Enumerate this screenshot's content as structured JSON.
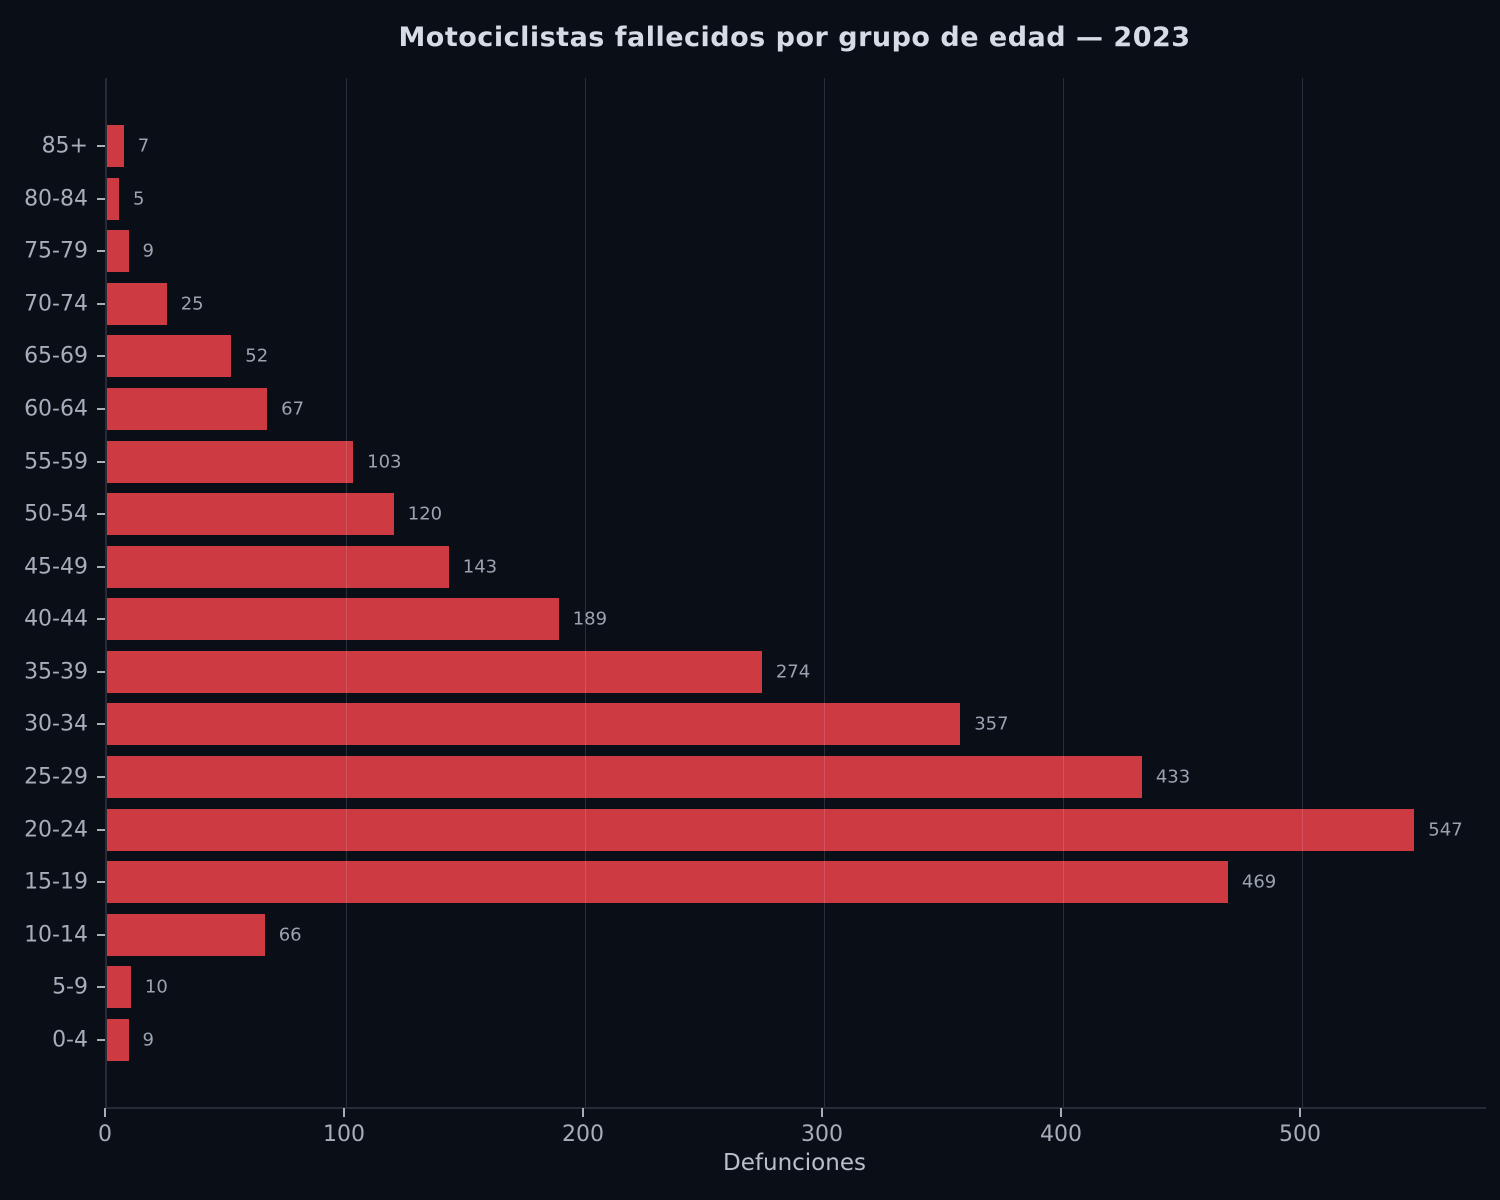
{
  "title": "Motociclistas fallecidos por grupo de edad — 2023",
  "xlabel": "Defunciones",
  "colors": {
    "background": "#0a0e16",
    "bar": "#cd3a41",
    "title_text": "#d6dce5",
    "tick_text": "#a6aebb",
    "value_text": "#9aa3b1",
    "gridline": "rgba(210,220,235,0.16)",
    "spine": "#262b35"
  },
  "chart_data": {
    "type": "bar",
    "orientation": "horizontal",
    "title": "Motociclistas fallecidos por grupo de edad — 2023",
    "xlabel": "Defunciones",
    "ylabel": "",
    "categories": [
      "85+",
      "80-84",
      "75-79",
      "70-74",
      "65-69",
      "60-64",
      "55-59",
      "50-54",
      "45-49",
      "40-44",
      "35-39",
      "30-34",
      "25-29",
      "20-24",
      "15-19",
      "10-14",
      "5-9",
      "0-4"
    ],
    "values": [
      7,
      5,
      9,
      25,
      52,
      67,
      103,
      120,
      143,
      189,
      274,
      357,
      433,
      547,
      469,
      66,
      10,
      9
    ],
    "x_ticks": [
      0,
      100,
      200,
      300,
      400,
      500
    ],
    "xlim": [
      0,
      577
    ],
    "grid": "vertical-gridlines-over-bars",
    "value_labels": true,
    "legend": false
  }
}
